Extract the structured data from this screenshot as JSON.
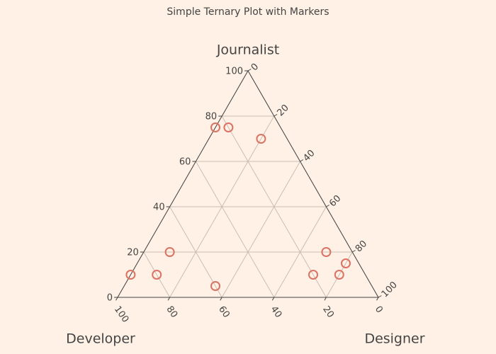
{
  "chart_data": {
    "type": "ternary",
    "title": "Simple Ternary Plot with Markers",
    "aaxis": {
      "title": "Journalist",
      "ticks": [
        0,
        20,
        40,
        60,
        80,
        100
      ]
    },
    "baxis": {
      "title": "Developer",
      "ticks": [
        0,
        20,
        40,
        60,
        80,
        100
      ]
    },
    "caxis": {
      "title": "Designer",
      "ticks": [
        0,
        20,
        40,
        60,
        80,
        100
      ]
    },
    "grid": true,
    "series": [
      {
        "color": "#DB7365",
        "a": [
          75,
          70,
          75,
          5,
          10,
          10,
          20,
          10,
          15,
          10,
          20
        ],
        "b": [
          25,
          10,
          20,
          60,
          80,
          90,
          70,
          20,
          5,
          10,
          10
        ],
        "c": [
          0,
          20,
          5,
          35,
          10,
          0,
          10,
          70,
          80,
          80,
          70
        ]
      }
    ]
  }
}
